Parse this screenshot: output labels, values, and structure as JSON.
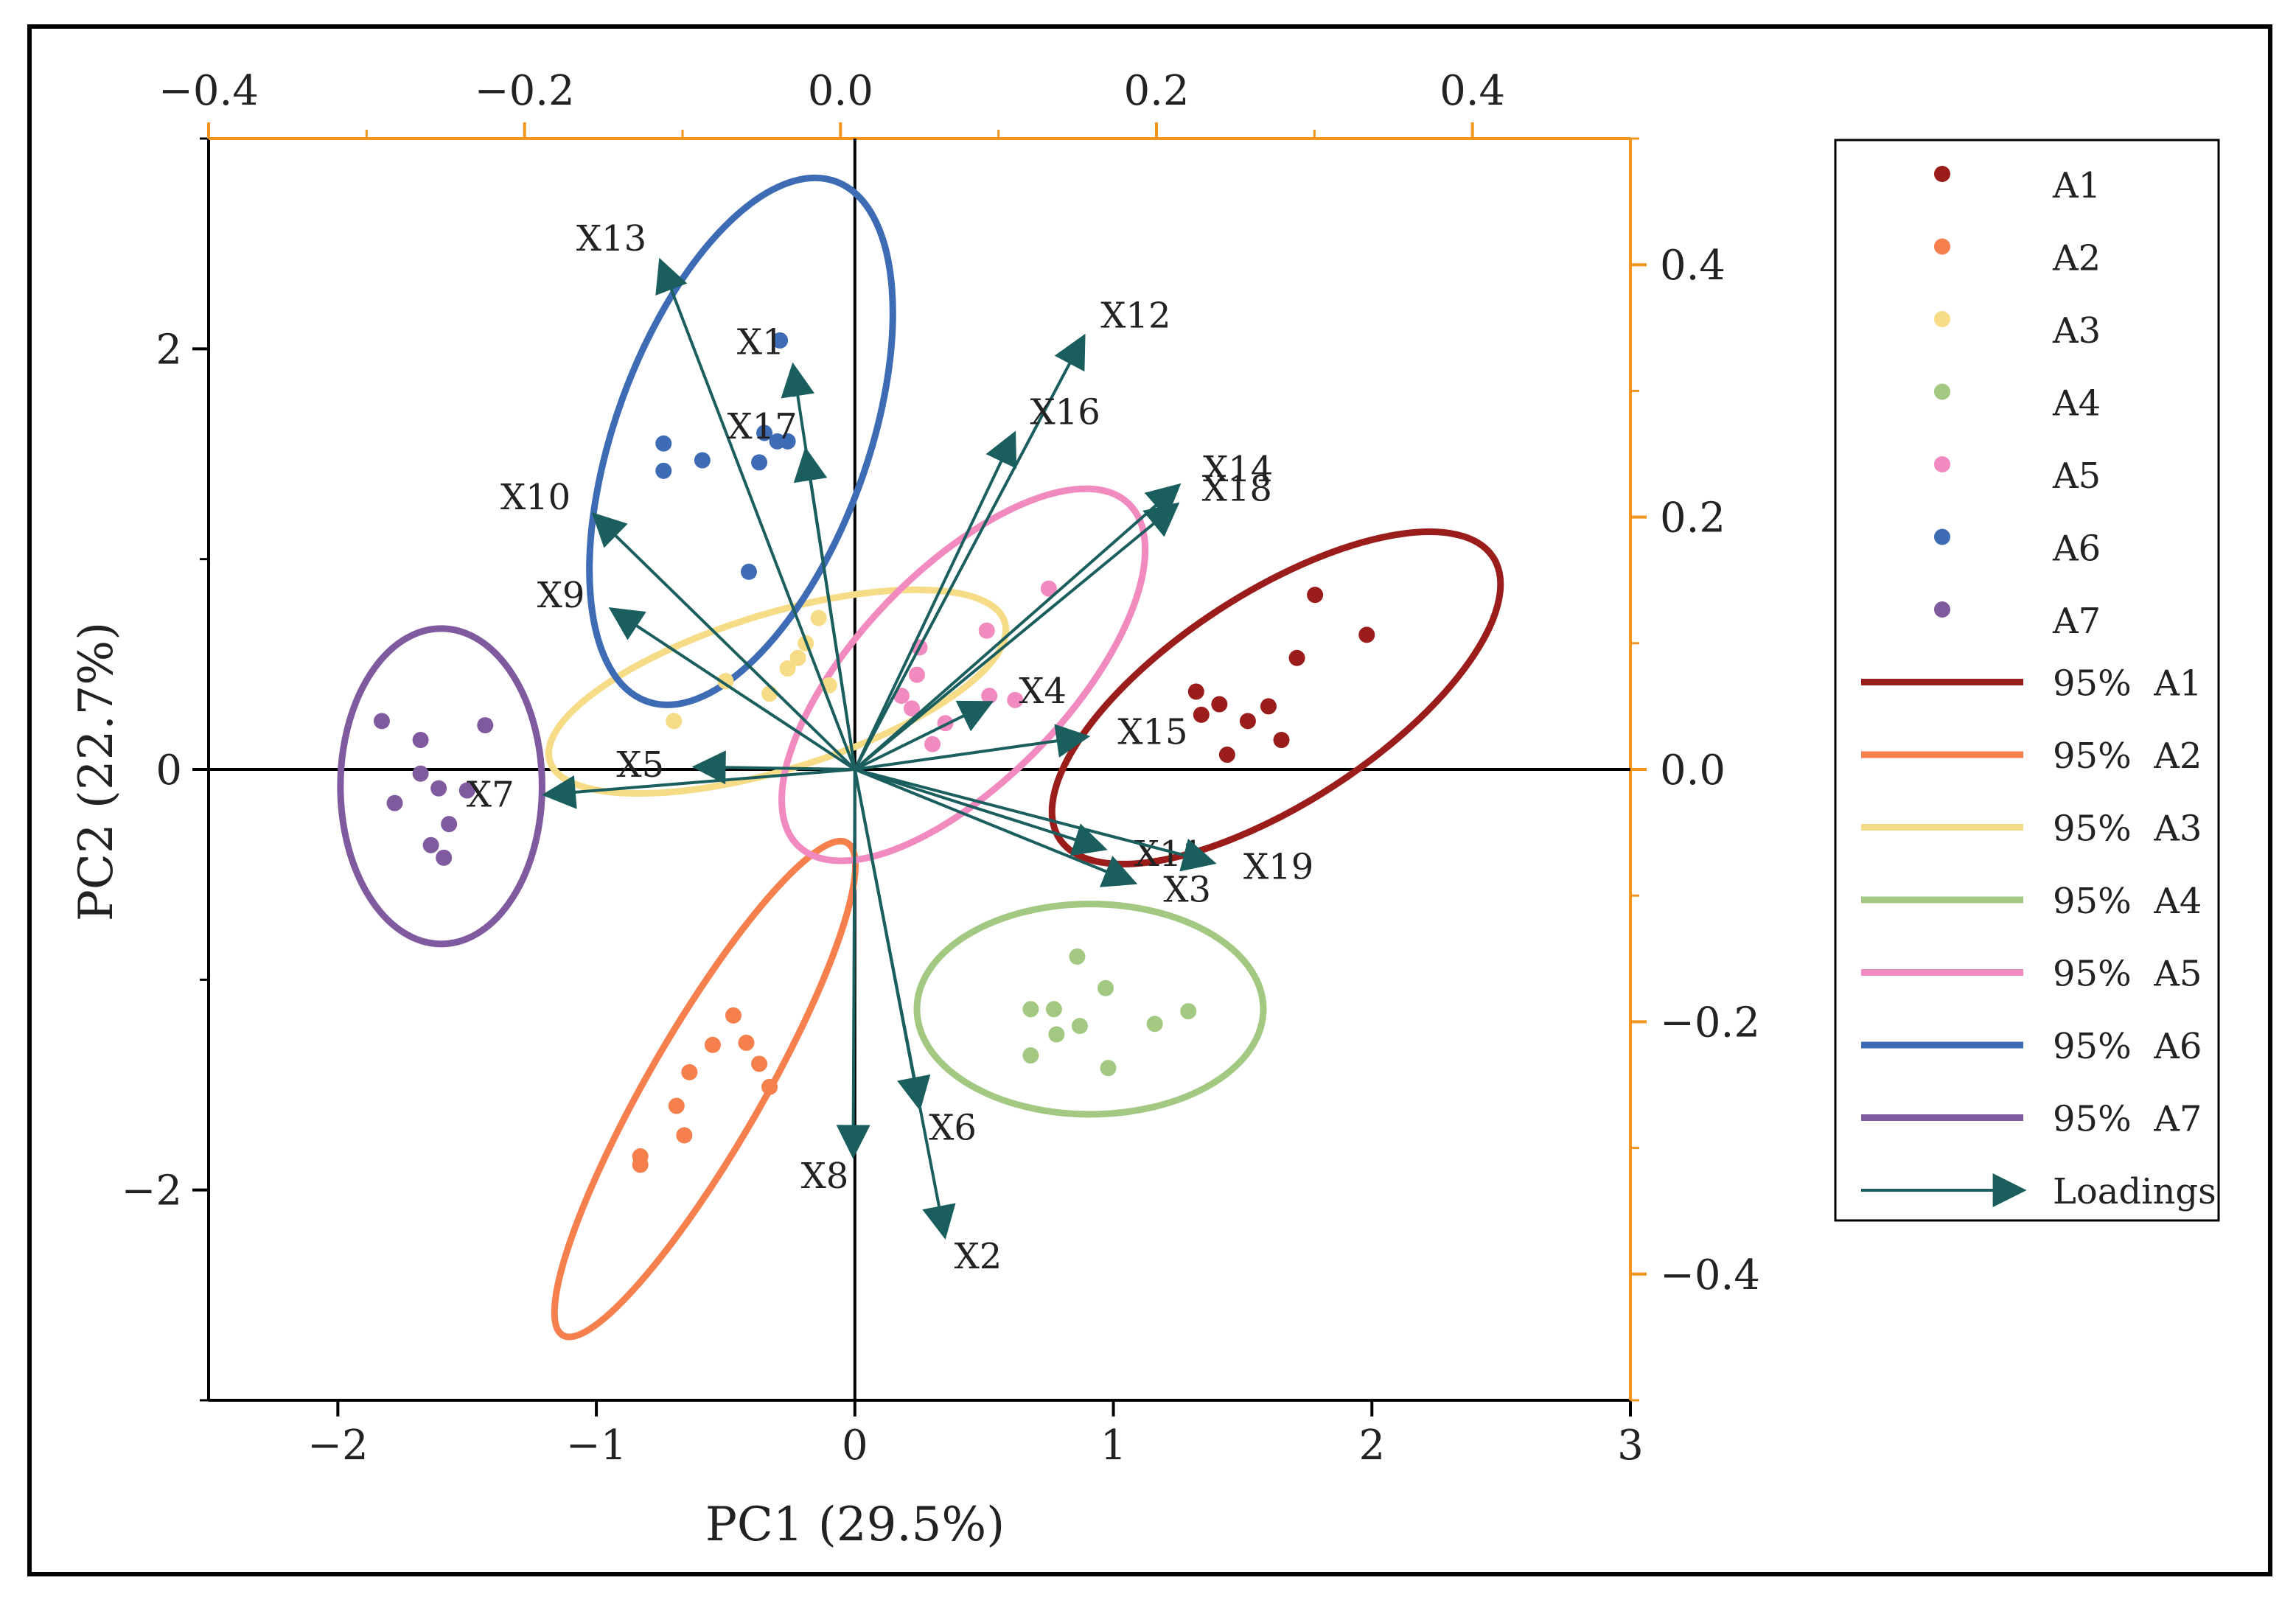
{
  "chart_data": {
    "type": "scatter",
    "subtype": "PCA biplot with 95% confidence ellipses and loading vectors",
    "xlabel": "PC1 (29.5%)",
    "ylabel": "PC2 (22.7%)",
    "xlim": [
      -2.5,
      3
    ],
    "ylim": [
      -3,
      3
    ],
    "xticks": [
      -2,
      -1,
      0,
      1,
      2,
      3
    ],
    "yticks": [
      -2,
      0,
      2
    ],
    "x2lim": [
      -0.4,
      0.5
    ],
    "y2lim": [
      -0.5,
      0.5
    ],
    "x2ticks": [
      -0.4,
      -0.2,
      0.0,
      0.2,
      0.4
    ],
    "y2ticks": [
      -0.4,
      -0.2,
      0.0,
      0.2,
      0.4
    ],
    "x2ticklabels": [
      "−0.4",
      "−0.2",
      "0.0",
      "0.2",
      "0.4"
    ],
    "y2ticklabels": [
      "−0.4",
      "−0.2",
      "0.0",
      "0.2",
      "0.4"
    ],
    "xticklabels": [
      "−2",
      "−1",
      "0",
      "1",
      "2",
      "3"
    ],
    "yticklabels": [
      "−2",
      "0",
      "2"
    ],
    "secondary_axis_color": "#f0961e",
    "series": [
      {
        "name": "A1",
        "color": "#9b1d1b",
        "points": [
          [
            1.32,
            0.37
          ],
          [
            1.34,
            0.26
          ],
          [
            1.41,
            0.31
          ],
          [
            1.44,
            0.07
          ],
          [
            1.52,
            0.23
          ],
          [
            1.6,
            0.3
          ],
          [
            1.65,
            0.14
          ],
          [
            1.71,
            0.53
          ],
          [
            1.78,
            0.83
          ],
          [
            1.98,
            0.64
          ]
        ],
        "ellipse": {
          "cx": 1.63,
          "cy": 0.34,
          "rx": 1.0,
          "ry": 0.5,
          "angle": 33
        }
      },
      {
        "name": "A2",
        "color": "#f5804d",
        "points": [
          [
            -0.83,
            -1.84
          ],
          [
            -0.83,
            -1.88
          ],
          [
            -0.66,
            -1.74
          ],
          [
            -0.69,
            -1.6
          ],
          [
            -0.64,
            -1.44
          ],
          [
            -0.55,
            -1.31
          ],
          [
            -0.47,
            -1.17
          ],
          [
            -0.42,
            -1.3
          ],
          [
            -0.37,
            -1.4
          ],
          [
            -0.33,
            -1.51
          ]
        ],
        "ellipse": {
          "cx": -0.58,
          "cy": -1.52,
          "rx": 1.1,
          "ry": 0.27,
          "angle": 60
        }
      },
      {
        "name": "A3",
        "color": "#f6dc86",
        "points": [
          [
            -0.7,
            0.23
          ],
          [
            -0.5,
            0.42
          ],
          [
            -0.33,
            0.36
          ],
          [
            -0.26,
            0.48
          ],
          [
            -0.22,
            0.53
          ],
          [
            -0.19,
            0.6
          ],
          [
            -0.14,
            0.72
          ],
          [
            -0.1,
            0.4
          ]
        ],
        "ellipse": {
          "cx": -0.3,
          "cy": 0.37,
          "rx": 0.92,
          "ry": 0.37,
          "angle": 17
        }
      },
      {
        "name": "A4",
        "color": "#a2c882",
        "points": [
          [
            0.68,
            -1.14
          ],
          [
            0.68,
            -1.36
          ],
          [
            0.77,
            -1.14
          ],
          [
            0.78,
            -1.26
          ],
          [
            0.86,
            -0.89
          ],
          [
            0.87,
            -1.22
          ],
          [
            0.97,
            -1.04
          ],
          [
            0.98,
            -1.42
          ],
          [
            1.16,
            -1.21
          ],
          [
            1.29,
            -1.15
          ]
        ],
        "ellipse": {
          "cx": 0.91,
          "cy": -1.14,
          "rx": 0.67,
          "ry": 0.5,
          "angle": 0
        }
      },
      {
        "name": "A5",
        "color": "#f18bbf",
        "points": [
          [
            0.18,
            0.35
          ],
          [
            0.22,
            0.29
          ],
          [
            0.24,
            0.45
          ],
          [
            0.25,
            0.58
          ],
          [
            0.3,
            0.12
          ],
          [
            0.35,
            0.22
          ],
          [
            0.52,
            0.35
          ],
          [
            0.51,
            0.66
          ],
          [
            0.62,
            0.33
          ],
          [
            0.75,
            0.86
          ]
        ],
        "ellipse": {
          "cx": 0.42,
          "cy": 0.45,
          "rx": 0.92,
          "ry": 0.5,
          "angle": 46
        }
      },
      {
        "name": "A6",
        "color": "#3d6cb5",
        "points": [
          [
            -0.74,
            1.55
          ],
          [
            -0.74,
            1.42
          ],
          [
            -0.59,
            1.47
          ],
          [
            -0.37,
            1.46
          ],
          [
            -0.35,
            1.6
          ],
          [
            -0.3,
            1.56
          ],
          [
            -0.29,
            2.04
          ],
          [
            -0.26,
            1.56
          ],
          [
            -0.24,
            1.81
          ],
          [
            -0.41,
            0.94
          ]
        ],
        "ellipse": {
          "cx": -0.44,
          "cy": 1.56,
          "rx": 1.07,
          "ry": 0.6,
          "angle": 70
        }
      },
      {
        "name": "A7",
        "color": "#805a9f",
        "points": [
          [
            -1.83,
            0.23
          ],
          [
            -1.78,
            -0.16
          ],
          [
            -1.68,
            0.14
          ],
          [
            -1.68,
            -0.02
          ],
          [
            -1.64,
            -0.36
          ],
          [
            -1.61,
            -0.09
          ],
          [
            -1.59,
            -0.42
          ],
          [
            -1.57,
            -0.26
          ],
          [
            -1.5,
            -0.1
          ],
          [
            -1.43,
            0.21
          ]
        ],
        "ellipse": {
          "cx": -1.6,
          "cy": -0.08,
          "rx": 0.39,
          "ry": 0.75,
          "angle": 0
        }
      }
    ],
    "loadings": {
      "color": "#1b5e5e",
      "vectors": [
        {
          "name": "X1",
          "x": -0.03,
          "y": 0.32
        },
        {
          "name": "X2",
          "x": 0.066,
          "y": -0.37
        },
        {
          "name": "X3",
          "x": 0.186,
          "y": -0.09
        },
        {
          "name": "X4",
          "x": 0.095,
          "y": 0.053
        },
        {
          "name": "X5",
          "x": -0.092,
          "y": 0.002
        },
        {
          "name": "X6",
          "x": 0.05,
          "y": -0.268
        },
        {
          "name": "X7",
          "x": -0.187,
          "y": -0.02
        },
        {
          "name": "X8",
          "x": 0.008,
          "y": -0.306
        },
        {
          "name": "X9",
          "x": -0.145,
          "y": 0.127
        },
        {
          "name": "X10",
          "x": -0.156,
          "y": 0.202
        },
        {
          "name": "X11",
          "x": 0.167,
          "y": -0.063
        },
        {
          "name": "X12",
          "x": 0.154,
          "y": 0.343
        },
        {
          "name": "X13",
          "x": -0.114,
          "y": 0.403
        },
        {
          "name": "X14",
          "x": 0.214,
          "y": 0.225
        },
        {
          "name": "X15",
          "x": 0.156,
          "y": 0.026
        },
        {
          "name": "X16",
          "x": 0.11,
          "y": 0.266
        },
        {
          "name": "X17",
          "x": -0.022,
          "y": 0.253
        },
        {
          "name": "X18",
          "x": 0.213,
          "y": 0.21
        },
        {
          "name": "X19",
          "x": 0.236,
          "y": -0.074
        }
      ]
    },
    "legend": {
      "placement": "right",
      "items": [
        {
          "label": "A1",
          "kind": "marker",
          "color": "#9b1d1b"
        },
        {
          "label": "A2",
          "kind": "marker",
          "color": "#f5804d"
        },
        {
          "label": "A3",
          "kind": "marker",
          "color": "#f6dc86"
        },
        {
          "label": "A4",
          "kind": "marker",
          "color": "#a2c882"
        },
        {
          "label": "A5",
          "kind": "marker",
          "color": "#f18bbf"
        },
        {
          "label": "A6",
          "kind": "marker",
          "color": "#3d6cb5"
        },
        {
          "label": "A7",
          "kind": "marker",
          "color": "#805a9f"
        },
        {
          "label": "95%  A1",
          "kind": "line",
          "color": "#9b1d1b"
        },
        {
          "label": "95%  A2",
          "kind": "line",
          "color": "#f5804d"
        },
        {
          "label": "95%  A3",
          "kind": "line",
          "color": "#f6dc86"
        },
        {
          "label": "95%  A4",
          "kind": "line",
          "color": "#a2c882"
        },
        {
          "label": "95%  A5",
          "kind": "line",
          "color": "#f18bbf"
        },
        {
          "label": "95%  A6",
          "kind": "line",
          "color": "#3d6cb5"
        },
        {
          "label": "95%  A7",
          "kind": "line",
          "color": "#805a9f"
        },
        {
          "label": "Loadings",
          "kind": "arrow",
          "color": "#1b5e5e"
        }
      ]
    }
  }
}
